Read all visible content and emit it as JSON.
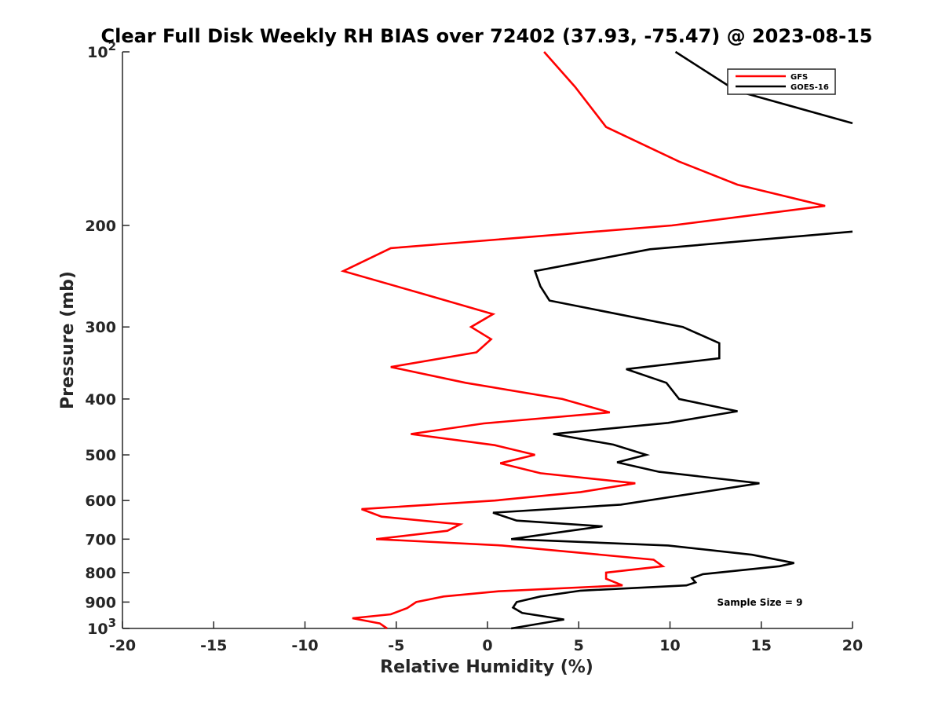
{
  "chart_data": {
    "type": "line",
    "title": "Clear Full Disk Weekly RH BIAS over 72402 (37.93, -75.47) @ 2023-08-15",
    "xlabel": "Relative Humidity (%)",
    "ylabel": "Pressure (mb)",
    "xlim": [
      -20,
      20
    ],
    "ylim": [
      100,
      1000
    ],
    "yscale": "log",
    "y_reversed": true,
    "grid": false,
    "legend_position": "top-right",
    "x_ticks": [
      "-20",
      "-15",
      "-10",
      "-5",
      "0",
      "5",
      "10",
      "15",
      "20"
    ],
    "y_ticks": [
      {
        "value": 100,
        "label": "10",
        "sup": "2"
      },
      {
        "value": 200,
        "label": "200",
        "sup": ""
      },
      {
        "value": 300,
        "label": "300",
        "sup": ""
      },
      {
        "value": 400,
        "label": "400",
        "sup": ""
      },
      {
        "value": 500,
        "label": "500",
        "sup": ""
      },
      {
        "value": 600,
        "label": "600",
        "sup": ""
      },
      {
        "value": 700,
        "label": "700",
        "sup": ""
      },
      {
        "value": 800,
        "label": "800",
        "sup": ""
      },
      {
        "value": 900,
        "label": "900",
        "sup": ""
      },
      {
        "value": 1000,
        "label": "10",
        "sup": "3"
      }
    ],
    "annotation": "Sample Size = 9",
    "series": [
      {
        "name": "GFS",
        "color": "#ff0000",
        "points": [
          [
            3.1,
            100
          ],
          [
            4.8,
            115
          ],
          [
            6.5,
            135
          ],
          [
            10.5,
            155
          ],
          [
            13.7,
            170
          ],
          [
            18.5,
            185
          ],
          [
            10.1,
            200
          ],
          [
            -5.3,
            219
          ],
          [
            -7.9,
            240
          ],
          [
            -3.7,
            262
          ],
          [
            0.3,
            285
          ],
          [
            -0.9,
            300
          ],
          [
            0.2,
            315
          ],
          [
            -0.6,
            332
          ],
          [
            -5.3,
            352
          ],
          [
            -1.2,
            375
          ],
          [
            4.1,
            400
          ],
          [
            6.7,
            422
          ],
          [
            -0.2,
            441
          ],
          [
            -4.2,
            460
          ],
          [
            0.4,
            481
          ],
          [
            2.6,
            500
          ],
          [
            0.7,
            517
          ],
          [
            2.9,
            538
          ],
          [
            8.1,
            560
          ],
          [
            5.1,
            580
          ],
          [
            0.4,
            600
          ],
          [
            -6.9,
            621
          ],
          [
            -5.8,
            640
          ],
          [
            -1.5,
            660
          ],
          [
            -2.2,
            677
          ],
          [
            -6.1,
            700
          ],
          [
            0.8,
            718
          ],
          [
            9.1,
            760
          ],
          [
            9.6,
            780
          ],
          [
            6.5,
            800
          ],
          [
            6.5,
            820
          ],
          [
            7.4,
            842
          ],
          [
            0.6,
            862
          ],
          [
            -2.4,
            880
          ],
          [
            -3.9,
            900
          ],
          [
            -4.4,
            922
          ],
          [
            -5.3,
            945
          ],
          [
            -7.4,
            960
          ],
          [
            -5.9,
            980
          ],
          [
            -5.5,
            1000
          ]
        ]
      },
      {
        "name": "GOES-16",
        "color": "#000000",
        "points": [
          [
            10.3,
            100
          ],
          [
            13.3,
            115
          ],
          [
            13.7,
            117
          ],
          [
            20.0,
            133
          ]
        ]
      },
      {
        "name": "GOES-16",
        "color": "#000000",
        "points": [
          [
            20.0,
            205
          ],
          [
            8.9,
            220
          ],
          [
            2.6,
            240
          ],
          [
            2.9,
            255
          ],
          [
            3.4,
            270
          ],
          [
            10.7,
            300
          ],
          [
            12.7,
            320
          ],
          [
            12.7,
            340
          ],
          [
            7.6,
            355
          ],
          [
            9.8,
            375
          ],
          [
            10.5,
            400
          ],
          [
            13.7,
            420
          ],
          [
            9.9,
            440
          ],
          [
            3.6,
            460
          ],
          [
            6.9,
            480
          ],
          [
            8.7,
            500
          ],
          [
            7.1,
            515
          ],
          [
            9.4,
            535
          ],
          [
            14.9,
            560
          ],
          [
            11.8,
            580
          ],
          [
            7.3,
            610
          ],
          [
            0.3,
            630
          ],
          [
            1.6,
            650
          ],
          [
            6.3,
            665
          ],
          [
            4.1,
            680
          ],
          [
            1.3,
            700
          ],
          [
            9.9,
            718
          ],
          [
            14.5,
            745
          ],
          [
            16.8,
            770
          ],
          [
            16.0,
            780
          ],
          [
            11.8,
            805
          ],
          [
            11.2,
            818
          ],
          [
            11.4,
            832
          ],
          [
            10.9,
            842
          ],
          [
            5.1,
            860
          ],
          [
            2.9,
            880
          ],
          [
            1.6,
            900
          ],
          [
            1.4,
            920
          ],
          [
            1.9,
            940
          ],
          [
            4.2,
            965
          ],
          [
            1.3,
            1000
          ]
        ]
      }
    ]
  }
}
